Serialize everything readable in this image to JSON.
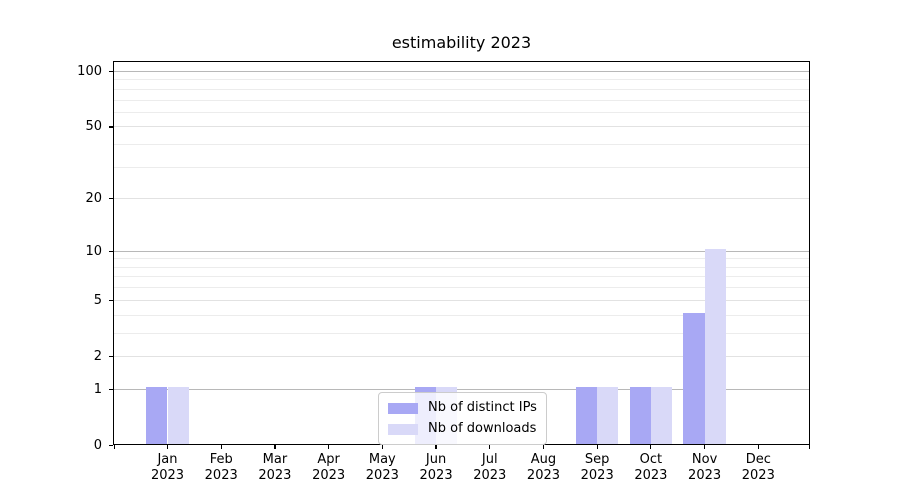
{
  "chart_data": {
    "type": "bar",
    "title": "estimability 2023",
    "x_ticks": [
      {
        "line1": "Jan",
        "line2": "2023"
      },
      {
        "line1": "Feb",
        "line2": "2023"
      },
      {
        "line1": "Mar",
        "line2": "2023"
      },
      {
        "line1": "Apr",
        "line2": "2023"
      },
      {
        "line1": "May",
        "line2": "2023"
      },
      {
        "line1": "Jun",
        "line2": "2023"
      },
      {
        "line1": "Jul",
        "line2": "2023"
      },
      {
        "line1": "Aug",
        "line2": "2023"
      },
      {
        "line1": "Sep",
        "line2": "2023"
      },
      {
        "line1": "Oct",
        "line2": "2023"
      },
      {
        "line1": "Nov",
        "line2": "2023"
      },
      {
        "line1": "Dec",
        "line2": "2023"
      }
    ],
    "series": [
      {
        "name": "Nb of distinct IPs",
        "color": "#a8a8f4",
        "values": [
          1,
          0,
          0,
          0,
          0,
          1,
          0,
          0,
          1,
          1,
          4,
          0
        ]
      },
      {
        "name": "Nb of downloads",
        "color": "#d9d9f8",
        "values": [
          1,
          0,
          0,
          0,
          0,
          1,
          0,
          0,
          1,
          1,
          10,
          0
        ]
      }
    ],
    "y_axis": {
      "scale": "log1p",
      "tick_labels": [
        "0",
        "1",
        "2",
        "5",
        "10",
        "20",
        "50",
        "100"
      ],
      "tick_values": [
        0,
        1,
        2,
        5,
        10,
        20,
        50,
        100
      ],
      "minor_gridline_values": [
        3,
        4,
        6,
        7,
        8,
        9,
        30,
        40,
        60,
        70,
        80,
        90
      ],
      "strong_gridline_values": [
        1,
        10,
        100
      ],
      "ylim": [
        0,
        112
      ]
    },
    "legend": {
      "position": "lower center"
    },
    "grid": "both",
    "colors": {
      "grid_strong": "#b8b8b8",
      "grid_major": "#e2e2e2",
      "grid_minor": "#ececec",
      "axis": "#000000",
      "legend_border": "#cccccc"
    }
  }
}
